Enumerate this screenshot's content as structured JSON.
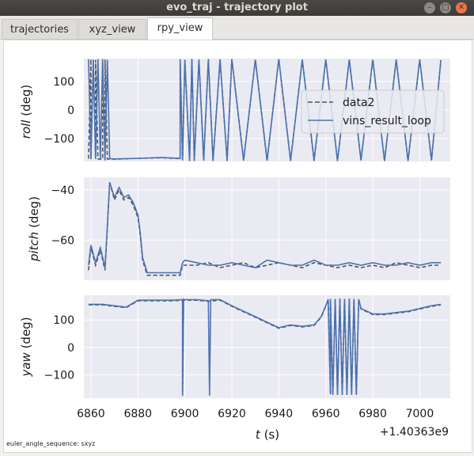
{
  "window": {
    "title": "evo_traj - trajectory plot"
  },
  "tabs": [
    {
      "label": "trajectories",
      "active": false
    },
    {
      "label": "xyz_view",
      "active": false
    },
    {
      "label": "rpy_view",
      "active": true
    }
  ],
  "plot": {
    "xlabel_var": "t",
    "xlabel_unit": " (s)",
    "x_offset_label": "+1.40363e9",
    "x_ticks": [
      "6860",
      "6880",
      "6900",
      "6920",
      "6940",
      "6960",
      "6980",
      "7000"
    ],
    "legend": {
      "series1": "data2",
      "series2": "vins_result_loop",
      "position": "upper right of roll panel"
    },
    "footer": "euler_angle_sequence: sxyz"
  },
  "chart_data": [
    {
      "type": "line",
      "panel": "roll",
      "ylabel_var": "roll",
      "ylabel_unit": " (deg)",
      "y_ticks": [
        "100",
        "0",
        "−100"
      ],
      "ylim": [
        -180,
        180
      ],
      "xlim": [
        6857,
        7013
      ],
      "grid": true,
      "series": [
        {
          "name": "data2",
          "style": "dashed",
          "color": "#555555",
          "x": [
            6859,
            6860,
            6860,
            6861,
            6862,
            6862,
            6863,
            6865,
            6865,
            6866,
            6866,
            6867,
            6868,
            6870,
            6880,
            6890,
            6898,
            6898,
            6899,
            6900,
            6902,
            6903,
            6904,
            6906,
            6908,
            6910,
            6912,
            6915,
            6918,
            6920,
            6925,
            6930,
            6935,
            6940,
            6945,
            6950,
            6955,
            6960,
            6965,
            6970,
            6975,
            6980,
            6985,
            6990,
            6995,
            7000,
            7005,
            7009
          ],
          "y": [
            -170,
            178,
            -172,
            176,
            -170,
            175,
            -171,
            -172,
            178,
            -176,
            177,
            -171,
            -172,
            -172,
            -169,
            -167,
            -170,
            178,
            -175,
            175,
            -178,
            178,
            -178,
            176,
            -176,
            178,
            -177,
            177,
            -178,
            178,
            -177,
            177,
            -178,
            178,
            -177,
            176,
            -178,
            177,
            -178,
            176,
            -177,
            177,
            -178,
            176,
            -178,
            177,
            -176,
            175
          ]
        },
        {
          "name": "vins_result_loop",
          "style": "solid",
          "color": "#4c72b0",
          "x": [
            6859,
            6860,
            6861,
            6862,
            6863,
            6864,
            6865,
            6866,
            6867,
            6868,
            6870,
            6880,
            6890,
            6898,
            6898,
            6899,
            6900,
            6902,
            6903,
            6904,
            6906,
            6908,
            6910,
            6912,
            6915,
            6918,
            6920,
            6925,
            6930,
            6935,
            6940,
            6945,
            6950,
            6955,
            6960,
            6965,
            6970,
            6975,
            6980,
            6985,
            6990,
            6995,
            7000,
            7005,
            7009
          ],
          "y": [
            178,
            -168,
            176,
            -171,
            178,
            -170,
            177,
            -173,
            176,
            -170,
            -171,
            -169,
            -166,
            -169,
            178,
            -176,
            176,
            -178,
            178,
            -177,
            177,
            -177,
            178,
            -178,
            177,
            -177,
            178,
            -176,
            176,
            -177,
            178,
            -178,
            176,
            -176,
            177,
            -178,
            177,
            -176,
            176,
            -178,
            177,
            -177,
            176,
            -175,
            174
          ]
        }
      ]
    },
    {
      "type": "line",
      "panel": "pitch",
      "ylabel_var": "pitch",
      "ylabel_unit": " (deg)",
      "y_ticks": [
        "−40",
        "−60"
      ],
      "ytick_values": [
        -40,
        -60
      ],
      "ylim": [
        -76,
        -35
      ],
      "xlim": [
        6857,
        7013
      ],
      "grid": true,
      "series": [
        {
          "name": "data2",
          "style": "dashed",
          "color": "#555555",
          "x": [
            6859,
            6860,
            6862,
            6864,
            6866,
            6867,
            6868,
            6870,
            6872,
            6874,
            6876,
            6878,
            6880,
            6881,
            6882,
            6884,
            6890,
            6898,
            6899,
            6900,
            6905,
            6910,
            6915,
            6920,
            6925,
            6930,
            6935,
            6940,
            6945,
            6950,
            6955,
            6960,
            6965,
            6970,
            6975,
            6980,
            6985,
            6990,
            6995,
            7000,
            7005,
            7009
          ],
          "y": [
            -72,
            -63,
            -70,
            -64,
            -72,
            -55,
            -37,
            -44,
            -40,
            -44,
            -43,
            -46,
            -51,
            -58,
            -68,
            -74,
            -74,
            -74,
            -70,
            -70,
            -70,
            -69,
            -71,
            -70,
            -69,
            -71,
            -70,
            -69,
            -70,
            -71,
            -69,
            -70,
            -71,
            -70,
            -71,
            -70,
            -71,
            -69,
            -70,
            -71,
            -70,
            -70
          ]
        },
        {
          "name": "vins_result_loop",
          "style": "solid",
          "color": "#4c72b0",
          "x": [
            6859,
            6860,
            6862,
            6864,
            6866,
            6867,
            6868,
            6870,
            6872,
            6874,
            6876,
            6878,
            6880,
            6881,
            6882,
            6884,
            6890,
            6898,
            6899,
            6900,
            6905,
            6910,
            6915,
            6920,
            6925,
            6930,
            6935,
            6940,
            6945,
            6950,
            6955,
            6960,
            6965,
            6970,
            6975,
            6980,
            6985,
            6990,
            6995,
            7000,
            7005,
            7009
          ],
          "y": [
            -70,
            -62,
            -69,
            -63,
            -71,
            -54,
            -37,
            -43,
            -39,
            -43,
            -42,
            -45,
            -50,
            -57,
            -67,
            -73,
            -73,
            -73,
            -69,
            -68,
            -69,
            -70,
            -70,
            -69,
            -70,
            -71,
            -68,
            -69,
            -70,
            -70,
            -68,
            -70,
            -70,
            -69,
            -70,
            -69,
            -70,
            -70,
            -69,
            -70,
            -69,
            -69
          ]
        }
      ]
    },
    {
      "type": "line",
      "panel": "yaw",
      "ylabel_var": "yaw",
      "ylabel_unit": " (deg)",
      "y_ticks": [
        "100",
        "0",
        "−100"
      ],
      "ylim": [
        -185,
        190
      ],
      "xlim": [
        6857,
        7013
      ],
      "grid": true,
      "series": [
        {
          "name": "data2",
          "style": "dashed",
          "color": "#555555",
          "x": [
            6859,
            6865,
            6870,
            6875,
            6880,
            6885,
            6890,
            6895,
            6899,
            6899,
            6899.5,
            6900,
            6905,
            6910,
            6915,
            6920,
            6925,
            6930,
            6935,
            6940,
            6945,
            6950,
            6955,
            6958,
            6960,
            6961,
            6962,
            6962,
            6963,
            6964,
            6965,
            6966,
            6967,
            6968,
            6969,
            6970,
            6971,
            6972,
            6973,
            6974,
            6975,
            6980,
            6985,
            6990,
            6995,
            7000,
            7005,
            7009
          ],
          "y": [
            155,
            155,
            150,
            145,
            170,
            170,
            170,
            170,
            172,
            -175,
            175,
            172,
            172,
            168,
            172,
            150,
            130,
            110,
            90,
            70,
            80,
            75,
            80,
            110,
            150,
            175,
            -170,
            176,
            -172,
            176,
            -172,
            177,
            -172,
            176,
            -172,
            177,
            -172,
            176,
            -172,
            175,
            140,
            120,
            120,
            125,
            130,
            140,
            150,
            155
          ]
        },
        {
          "name": "vins_result_loop",
          "style": "solid",
          "color": "#4c72b0",
          "x": [
            6859,
            6865,
            6870,
            6875,
            6880,
            6885,
            6890,
            6895,
            6899,
            6899,
            6899.5,
            6900,
            6905,
            6910,
            6910.5,
            6911,
            6915,
            6920,
            6925,
            6930,
            6935,
            6940,
            6945,
            6950,
            6955,
            6958,
            6960,
            6961,
            6962,
            6962,
            6963,
            6964,
            6965,
            6966,
            6967,
            6968,
            6969,
            6970,
            6971,
            6972,
            6973,
            6974,
            6975,
            6980,
            6985,
            6990,
            6995,
            7000,
            7005,
            7009
          ],
          "y": [
            157,
            157,
            152,
            147,
            172,
            172,
            172,
            172,
            174,
            -176,
            176,
            174,
            174,
            170,
            -176,
            174,
            174,
            152,
            132,
            112,
            92,
            72,
            82,
            77,
            82,
            112,
            152,
            176,
            -171,
            177,
            -173,
            177,
            -173,
            178,
            -173,
            177,
            -173,
            178,
            -173,
            177,
            -173,
            176,
            142,
            122,
            122,
            127,
            132,
            142,
            152,
            157
          ]
        }
      ]
    }
  ]
}
